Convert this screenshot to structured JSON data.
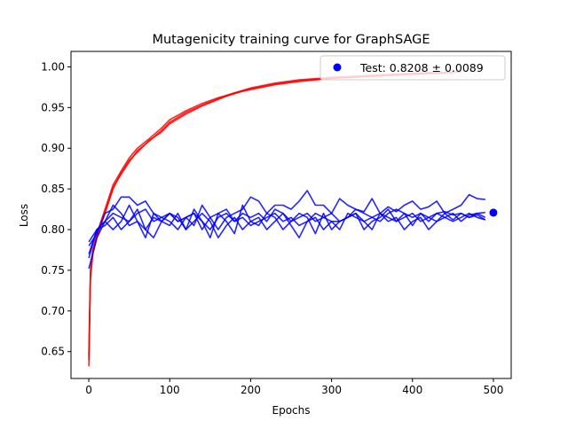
{
  "chart_data": {
    "type": "line",
    "title": "Mutagenicity training curve for GraphSAGE",
    "xlabel": "Epochs",
    "ylabel": "Loss",
    "xlim": [
      -22,
      522
    ],
    "ylim": [
      0.617,
      1.019
    ],
    "xticks": [
      0,
      100,
      200,
      300,
      400,
      500
    ],
    "yticks": [
      0.65,
      0.7,
      0.75,
      0.8,
      0.85,
      0.9,
      0.95,
      1.0
    ],
    "xtick_labels": [
      "0",
      "100",
      "200",
      "300",
      "400",
      "500"
    ],
    "ytick_labels": [
      "0.65",
      "0.70",
      "0.75",
      "0.80",
      "0.85",
      "0.90",
      "0.95",
      "1.00"
    ],
    "legend": {
      "position": "top-right",
      "entries": [
        {
          "label": "Test: 0.8208 ± 0.0089",
          "marker": "circle",
          "color": "#0000ff"
        }
      ]
    },
    "colors": {
      "train": "#ff0000",
      "validation": "#0000ff",
      "test": "#0000ff"
    },
    "series": [
      {
        "group": "train",
        "x": [
          0,
          2,
          5,
          10,
          15,
          20,
          30,
          40,
          50,
          60,
          75,
          90,
          100,
          120,
          140,
          160,
          180,
          200,
          230,
          260,
          300,
          340,
          380,
          420,
          450
        ],
        "y": [
          0.632,
          0.74,
          0.77,
          0.79,
          0.805,
          0.82,
          0.85,
          0.87,
          0.885,
          0.895,
          0.91,
          0.92,
          0.93,
          0.942,
          0.952,
          0.96,
          0.968,
          0.972,
          0.978,
          0.982,
          0.986,
          0.988,
          0.99,
          0.992,
          0.993
        ]
      },
      {
        "group": "train",
        "x": [
          0,
          2,
          5,
          10,
          15,
          20,
          30,
          40,
          50,
          60,
          75,
          90,
          100,
          120,
          140,
          160,
          180,
          200,
          230,
          260,
          300,
          340,
          380,
          420,
          440
        ],
        "y": [
          0.645,
          0.75,
          0.775,
          0.795,
          0.81,
          0.825,
          0.855,
          0.872,
          0.888,
          0.9,
          0.912,
          0.925,
          0.935,
          0.946,
          0.955,
          0.962,
          0.968,
          0.974,
          0.98,
          0.984,
          0.987,
          0.989,
          0.991,
          0.993,
          0.993
        ]
      },
      {
        "group": "train",
        "x": [
          0,
          2,
          5,
          10,
          15,
          20,
          30,
          40,
          50,
          60,
          75,
          90,
          100,
          120,
          140,
          160,
          180,
          200,
          230,
          260,
          300,
          340,
          380,
          420,
          460
        ],
        "y": [
          0.64,
          0.745,
          0.772,
          0.792,
          0.808,
          0.822,
          0.852,
          0.868,
          0.883,
          0.897,
          0.909,
          0.922,
          0.932,
          0.944,
          0.953,
          0.961,
          0.967,
          0.973,
          0.979,
          0.983,
          0.986,
          0.988,
          0.99,
          0.992,
          0.994
        ]
      },
      {
        "group": "validation",
        "x": [
          0,
          10,
          20,
          30,
          40,
          50,
          60,
          70,
          80,
          90,
          100,
          110,
          120,
          130,
          140,
          150,
          160,
          170,
          180,
          190,
          200,
          210,
          220,
          230,
          240,
          250,
          260,
          270,
          280,
          290,
          300,
          310,
          320,
          330,
          340,
          350,
          360,
          370,
          380,
          390,
          400,
          410,
          420,
          430,
          440,
          450,
          460,
          470,
          480,
          490
        ],
        "y": [
          0.752,
          0.79,
          0.81,
          0.83,
          0.82,
          0.805,
          0.81,
          0.8,
          0.815,
          0.81,
          0.82,
          0.81,
          0.815,
          0.82,
          0.81,
          0.8,
          0.815,
          0.82,
          0.81,
          0.815,
          0.805,
          0.81,
          0.815,
          0.82,
          0.81,
          0.815,
          0.805,
          0.81,
          0.82,
          0.815,
          0.81,
          0.81,
          0.815,
          0.82,
          0.81,
          0.815,
          0.82,
          0.815,
          0.81,
          0.815,
          0.82,
          0.81,
          0.815,
          0.82,
          0.815,
          0.81,
          0.815,
          0.82,
          0.815,
          0.812
        ]
      },
      {
        "group": "validation",
        "x": [
          0,
          10,
          20,
          30,
          40,
          50,
          60,
          70,
          80,
          90,
          100,
          110,
          120,
          130,
          140,
          150,
          160,
          170,
          180,
          190,
          200,
          210,
          220,
          230,
          240,
          250,
          260,
          270,
          280,
          290,
          300,
          310,
          320,
          330,
          340,
          350,
          360,
          370,
          380,
          390,
          400,
          410,
          420,
          430,
          440,
          450,
          460,
          470,
          480,
          490
        ],
        "y": [
          0.78,
          0.795,
          0.82,
          0.825,
          0.84,
          0.84,
          0.83,
          0.835,
          0.82,
          0.815,
          0.81,
          0.8,
          0.815,
          0.805,
          0.83,
          0.815,
          0.8,
          0.815,
          0.82,
          0.825,
          0.84,
          0.835,
          0.82,
          0.83,
          0.83,
          0.825,
          0.835,
          0.848,
          0.83,
          0.83,
          0.82,
          0.838,
          0.83,
          0.825,
          0.822,
          0.838,
          0.82,
          0.828,
          0.822,
          0.83,
          0.835,
          0.825,
          0.828,
          0.835,
          0.82,
          0.825,
          0.83,
          0.843,
          0.838,
          0.837
        ]
      },
      {
        "group": "validation",
        "x": [
          0,
          10,
          20,
          30,
          40,
          50,
          60,
          70,
          80,
          90,
          100,
          110,
          120,
          130,
          140,
          150,
          160,
          170,
          180,
          190,
          200,
          210,
          220,
          230,
          240,
          250,
          260,
          270,
          280,
          290,
          300,
          310,
          320,
          330,
          340,
          350,
          360,
          370,
          380,
          390,
          400,
          410,
          420,
          430,
          440,
          450,
          460,
          470,
          480,
          490
        ],
        "y": [
          0.77,
          0.8,
          0.81,
          0.8,
          0.81,
          0.83,
          0.81,
          0.79,
          0.82,
          0.81,
          0.805,
          0.82,
          0.8,
          0.825,
          0.81,
          0.79,
          0.82,
          0.81,
          0.795,
          0.83,
          0.81,
          0.805,
          0.82,
          0.815,
          0.8,
          0.81,
          0.82,
          0.815,
          0.795,
          0.82,
          0.8,
          0.81,
          0.815,
          0.82,
          0.8,
          0.81,
          0.815,
          0.825,
          0.81,
          0.82,
          0.805,
          0.82,
          0.815,
          0.81,
          0.82,
          0.812,
          0.82,
          0.815,
          0.818,
          0.812
        ]
      },
      {
        "group": "validation",
        "x": [
          0,
          10,
          20,
          30,
          40,
          50,
          60,
          70,
          80,
          90,
          100,
          110,
          120,
          130,
          140,
          150,
          160,
          170,
          180,
          190,
          200,
          210,
          220,
          230,
          240,
          250,
          260,
          270,
          280,
          290,
          300,
          310,
          320,
          330,
          340,
          350,
          360,
          370,
          380,
          390,
          400,
          410,
          420,
          430,
          440,
          450,
          460,
          470,
          480,
          490
        ],
        "y": [
          0.765,
          0.8,
          0.805,
          0.815,
          0.8,
          0.81,
          0.825,
          0.8,
          0.79,
          0.81,
          0.82,
          0.815,
          0.8,
          0.81,
          0.82,
          0.81,
          0.79,
          0.805,
          0.815,
          0.8,
          0.81,
          0.815,
          0.8,
          0.81,
          0.82,
          0.805,
          0.79,
          0.81,
          0.815,
          0.8,
          0.81,
          0.8,
          0.82,
          0.815,
          0.81,
          0.8,
          0.82,
          0.81,
          0.815,
          0.8,
          0.81,
          0.815,
          0.8,
          0.81,
          0.815,
          0.82,
          0.81,
          0.818,
          0.82,
          0.815
        ]
      },
      {
        "group": "validation",
        "x": [
          0,
          10,
          20,
          30,
          40,
          50,
          60,
          70,
          80,
          90,
          100,
          110,
          120,
          130,
          140,
          150,
          160,
          170,
          180,
          190,
          200,
          210,
          220,
          230,
          240,
          250,
          260,
          270,
          280,
          290,
          300,
          310,
          320,
          330,
          340,
          350,
          360,
          370,
          380,
          390,
          400,
          410,
          420,
          430,
          440,
          450,
          460,
          470,
          480,
          490
        ],
        "y": [
          0.785,
          0.8,
          0.81,
          0.82,
          0.815,
          0.81,
          0.82,
          0.825,
          0.81,
          0.815,
          0.82,
          0.81,
          0.815,
          0.82,
          0.8,
          0.815,
          0.82,
          0.825,
          0.81,
          0.82,
          0.815,
          0.82,
          0.81,
          0.825,
          0.82,
          0.81,
          0.815,
          0.82,
          0.81,
          0.815,
          0.82,
          0.81,
          0.815,
          0.825,
          0.82,
          0.815,
          0.81,
          0.82,
          0.825,
          0.82,
          0.815,
          0.82,
          0.81,
          0.82,
          0.822,
          0.818,
          0.82,
          0.815,
          0.82,
          0.821
        ]
      }
    ],
    "test_point": {
      "x": 500,
      "y": 0.8208
    }
  }
}
